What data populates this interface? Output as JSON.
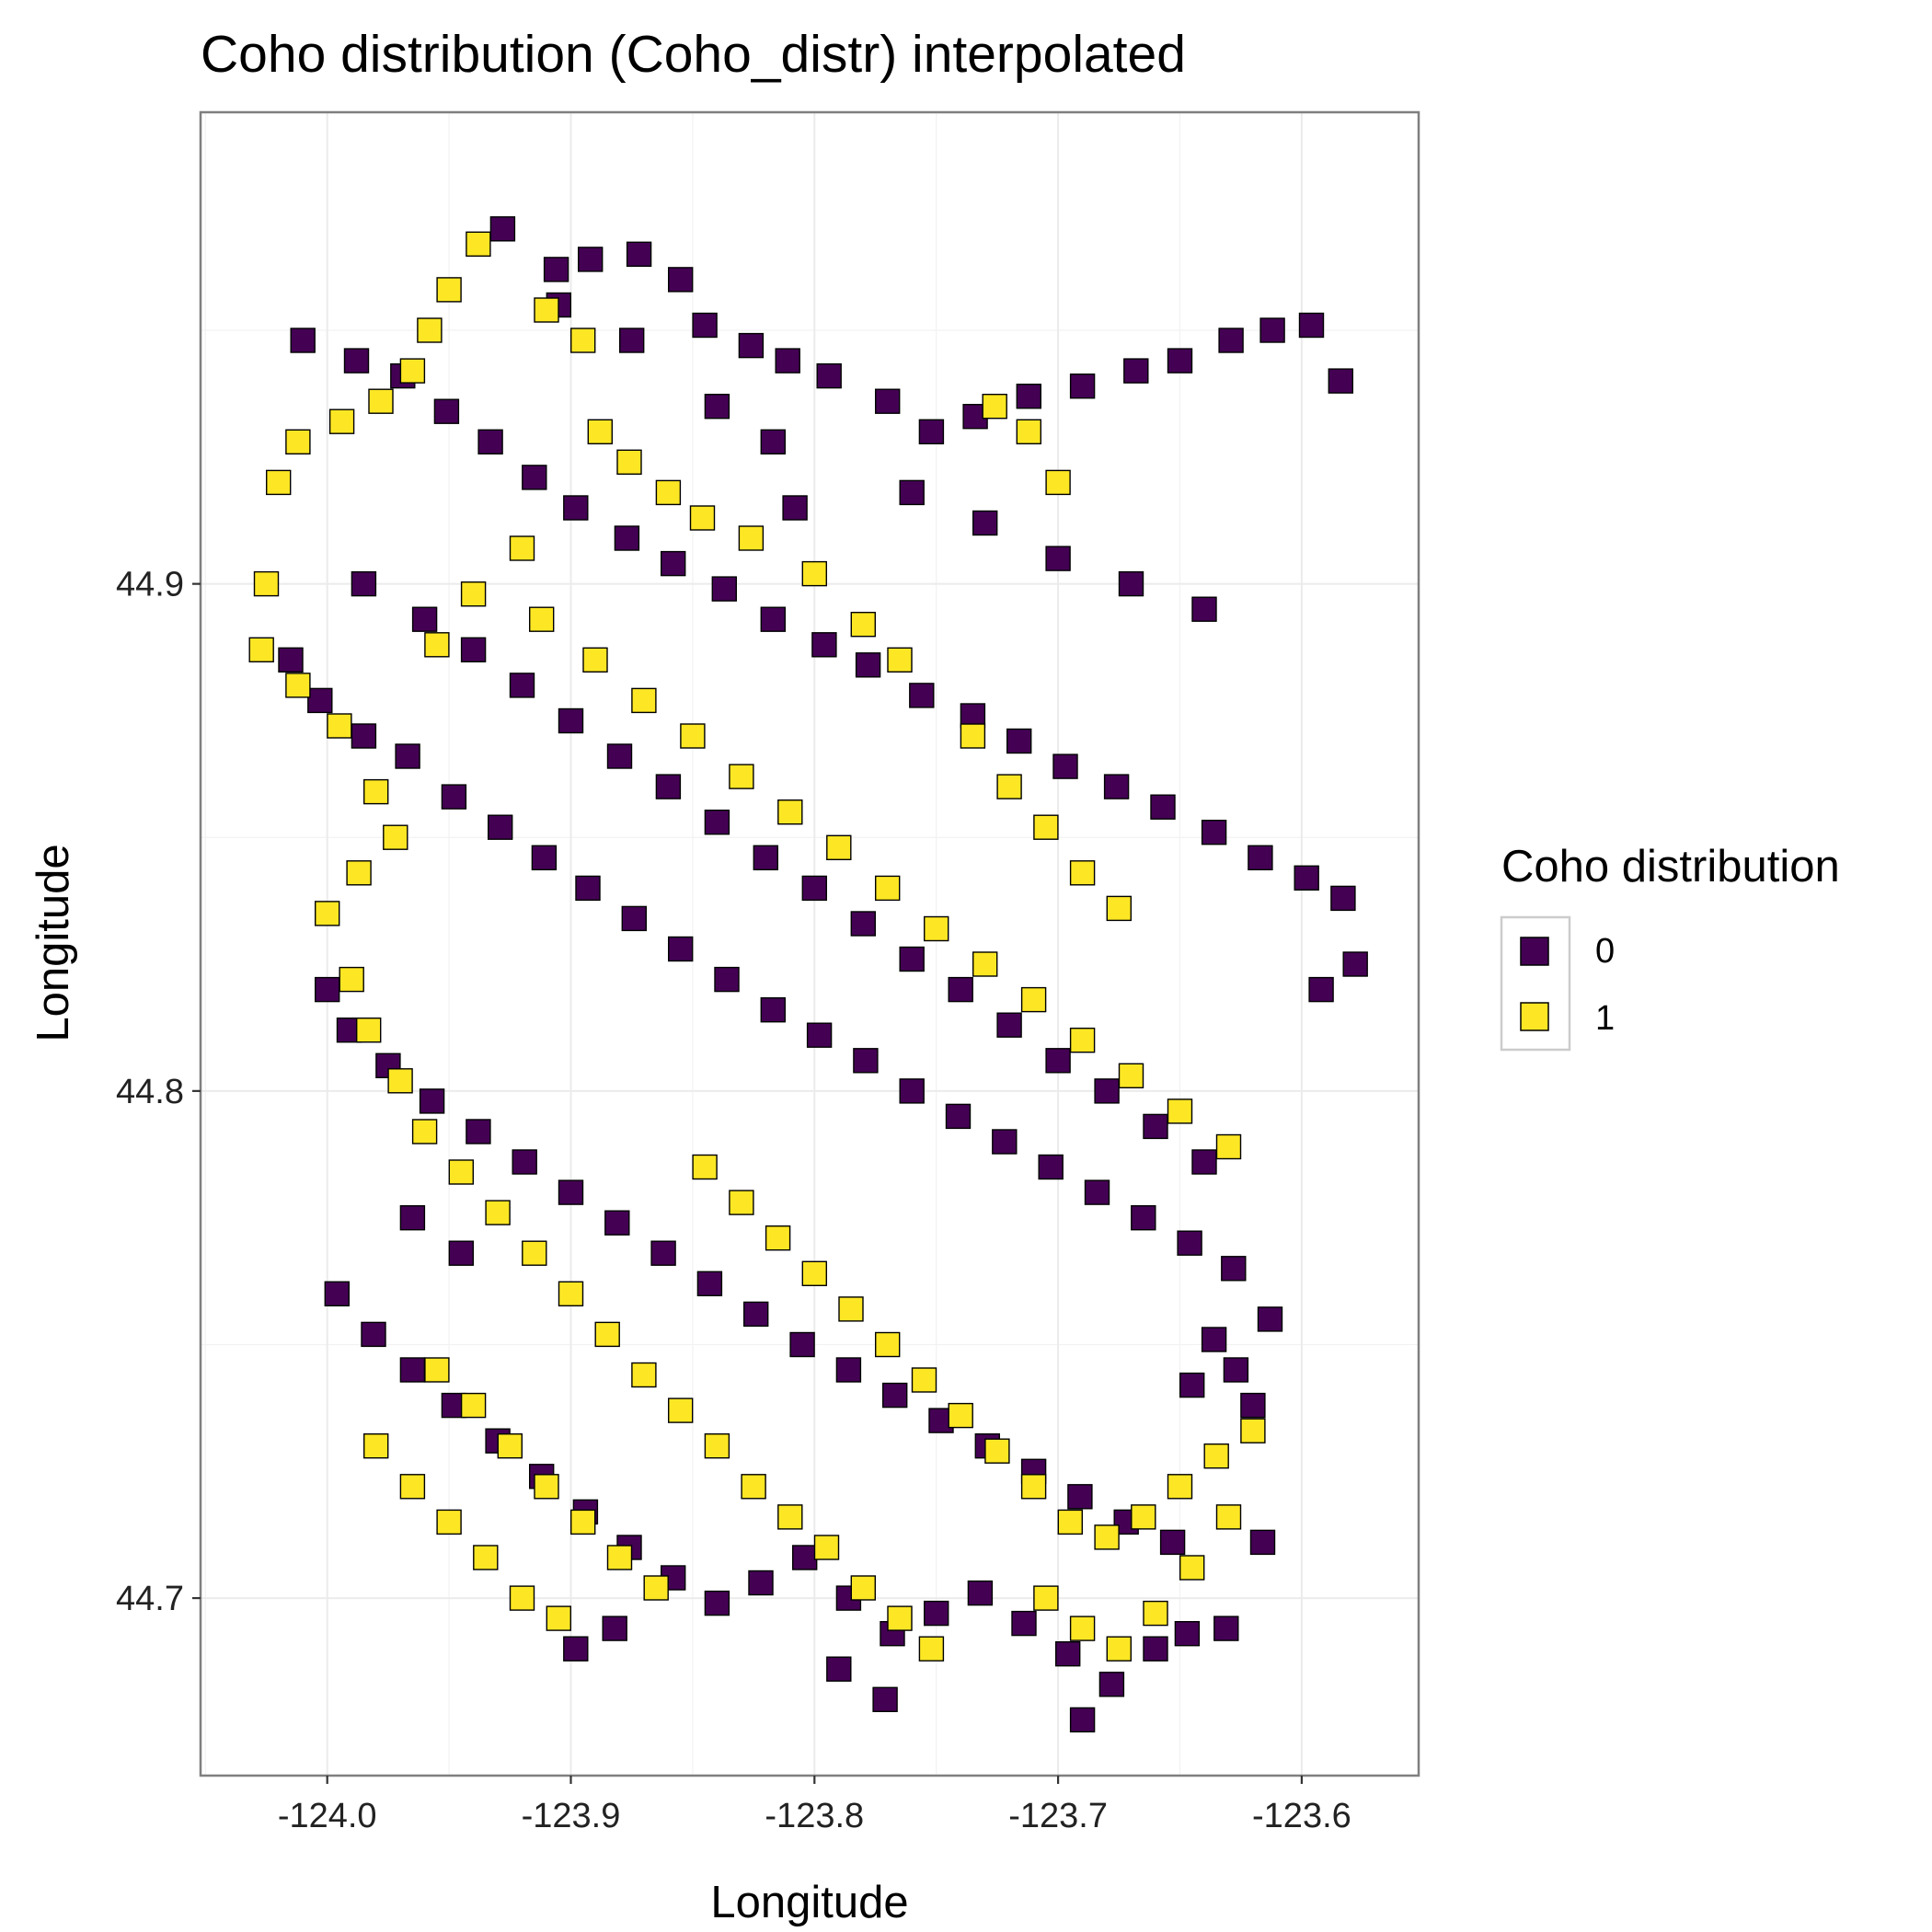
{
  "chart_data": {
    "type": "scatter",
    "title": "Coho distribution (Coho_distr) interpolated",
    "xlabel": "Longitude",
    "ylabel": "Longitude",
    "xlim": [
      -124.052,
      -123.552
    ],
    "ylim": [
      44.665,
      44.993
    ],
    "x_ticks": [
      "-124.0",
      "-123.9",
      "-123.8",
      "-123.7",
      "-123.6"
    ],
    "y_ticks": [
      "44.7",
      "44.8",
      "44.9"
    ],
    "grid": true,
    "legend": {
      "title": "Coho distribution",
      "position": "right",
      "entries": [
        {
          "label": "0",
          "color": "#440154"
        },
        {
          "label": "1",
          "color": "#FDE725"
        }
      ]
    },
    "marker": "square",
    "series": [
      {
        "name": "0",
        "color": "#440154",
        "points": [
          [
            -123.928,
            44.97
          ],
          [
            -123.906,
            44.962
          ],
          [
            -123.892,
            44.964
          ],
          [
            -123.872,
            44.965
          ],
          [
            -123.855,
            44.96
          ],
          [
            -123.845,
            44.951
          ],
          [
            -123.826,
            44.947
          ],
          [
            -123.811,
            44.944
          ],
          [
            -123.794,
            44.941
          ],
          [
            -123.77,
            44.936
          ],
          [
            -123.752,
            44.93
          ],
          [
            -123.734,
            44.933
          ],
          [
            -123.712,
            44.937
          ],
          [
            -123.69,
            44.939
          ],
          [
            -123.668,
            44.942
          ],
          [
            -123.65,
            44.944
          ],
          [
            -123.629,
            44.948
          ],
          [
            -123.612,
            44.95
          ],
          [
            -123.596,
            44.951
          ],
          [
            -123.584,
            44.94
          ],
          [
            -124.01,
            44.948
          ],
          [
            -123.988,
            44.944
          ],
          [
            -123.969,
            44.941
          ],
          [
            -123.951,
            44.934
          ],
          [
            -123.933,
            44.928
          ],
          [
            -123.915,
            44.921
          ],
          [
            -123.898,
            44.915
          ],
          [
            -123.877,
            44.909
          ],
          [
            -123.858,
            44.904
          ],
          [
            -123.837,
            44.899
          ],
          [
            -123.817,
            44.893
          ],
          [
            -123.796,
            44.888
          ],
          [
            -123.778,
            44.884
          ],
          [
            -123.756,
            44.878
          ],
          [
            -123.735,
            44.874
          ],
          [
            -123.716,
            44.869
          ],
          [
            -123.697,
            44.864
          ],
          [
            -123.676,
            44.86
          ],
          [
            -123.657,
            44.856
          ],
          [
            -123.636,
            44.851
          ],
          [
            -123.617,
            44.846
          ],
          [
            -123.598,
            44.842
          ],
          [
            -123.583,
            44.838
          ],
          [
            -123.578,
            44.825
          ],
          [
            -123.592,
            44.82
          ],
          [
            -124.015,
            44.885
          ],
          [
            -124.003,
            44.877
          ],
          [
            -123.985,
            44.87
          ],
          [
            -123.967,
            44.866
          ],
          [
            -123.948,
            44.858
          ],
          [
            -123.929,
            44.852
          ],
          [
            -123.911,
            44.846
          ],
          [
            -123.893,
            44.84
          ],
          [
            -123.874,
            44.834
          ],
          [
            -123.855,
            44.828
          ],
          [
            -123.836,
            44.822
          ],
          [
            -123.817,
            44.816
          ],
          [
            -123.798,
            44.811
          ],
          [
            -123.779,
            44.806
          ],
          [
            -123.76,
            44.8
          ],
          [
            -123.741,
            44.795
          ],
          [
            -123.722,
            44.79
          ],
          [
            -123.703,
            44.785
          ],
          [
            -123.684,
            44.78
          ],
          [
            -123.665,
            44.775
          ],
          [
            -123.646,
            44.77
          ],
          [
            -123.628,
            44.765
          ],
          [
            -123.613,
            44.755
          ],
          [
            -123.627,
            44.745
          ],
          [
            -123.645,
            44.742
          ],
          [
            -124.0,
            44.82
          ],
          [
            -123.991,
            44.812
          ],
          [
            -123.975,
            44.805
          ],
          [
            -123.957,
            44.798
          ],
          [
            -123.938,
            44.792
          ],
          [
            -123.919,
            44.786
          ],
          [
            -123.9,
            44.78
          ],
          [
            -123.881,
            44.774
          ],
          [
            -123.862,
            44.768
          ],
          [
            -123.843,
            44.762
          ],
          [
            -123.824,
            44.756
          ],
          [
            -123.805,
            44.75
          ],
          [
            -123.786,
            44.745
          ],
          [
            -123.767,
            44.74
          ],
          [
            -123.748,
            44.735
          ],
          [
            -123.729,
            44.73
          ],
          [
            -123.71,
            44.725
          ],
          [
            -123.691,
            44.72
          ],
          [
            -123.672,
            44.715
          ],
          [
            -123.653,
            44.711
          ],
          [
            -123.996,
            44.76
          ],
          [
            -123.981,
            44.752
          ],
          [
            -123.965,
            44.745
          ],
          [
            -123.948,
            44.738
          ],
          [
            -123.93,
            44.731
          ],
          [
            -123.912,
            44.724
          ],
          [
            -123.894,
            44.717
          ],
          [
            -123.876,
            44.71
          ],
          [
            -123.858,
            44.704
          ],
          [
            -123.84,
            44.699
          ],
          [
            -123.822,
            44.703
          ],
          [
            -123.804,
            44.708
          ],
          [
            -123.786,
            44.7
          ],
          [
            -123.768,
            44.693
          ],
          [
            -123.75,
            44.697
          ],
          [
            -123.732,
            44.701
          ],
          [
            -123.714,
            44.695
          ],
          [
            -123.696,
            44.689
          ],
          [
            -123.678,
            44.683
          ],
          [
            -123.66,
            44.69
          ],
          [
            -123.898,
            44.69
          ],
          [
            -123.882,
            44.694
          ],
          [
            -123.79,
            44.686
          ],
          [
            -123.771,
            44.68
          ],
          [
            -123.69,
            44.676
          ],
          [
            -123.647,
            44.693
          ],
          [
            -123.631,
            44.694
          ],
          [
            -123.616,
            44.711
          ],
          [
            -123.62,
            44.738
          ],
          [
            -123.636,
            44.751
          ],
          [
            -123.905,
            44.955
          ],
          [
            -123.875,
            44.948
          ],
          [
            -123.84,
            44.935
          ],
          [
            -123.817,
            44.928
          ],
          [
            -123.808,
            44.915
          ],
          [
            -123.76,
            44.918
          ],
          [
            -123.73,
            44.912
          ],
          [
            -123.7,
            44.905
          ],
          [
            -123.67,
            44.9
          ],
          [
            -123.64,
            44.895
          ],
          [
            -123.985,
            44.9
          ],
          [
            -123.96,
            44.893
          ],
          [
            -123.94,
            44.887
          ],
          [
            -123.92,
            44.88
          ],
          [
            -123.9,
            44.873
          ],
          [
            -123.88,
            44.866
          ],
          [
            -123.86,
            44.86
          ],
          [
            -123.84,
            44.853
          ],
          [
            -123.82,
            44.846
          ],
          [
            -123.8,
            44.84
          ],
          [
            -123.78,
            44.833
          ],
          [
            -123.76,
            44.826
          ],
          [
            -123.74,
            44.82
          ],
          [
            -123.72,
            44.813
          ],
          [
            -123.7,
            44.806
          ],
          [
            -123.68,
            44.8
          ],
          [
            -123.66,
            44.793
          ],
          [
            -123.64,
            44.786
          ],
          [
            -123.965,
            44.775
          ],
          [
            -123.945,
            44.768
          ]
        ]
      },
      {
        "name": "1",
        "color": "#FDE725",
        "points": [
          [
            -123.938,
            44.967
          ],
          [
            -123.95,
            44.958
          ],
          [
            -123.958,
            44.95
          ],
          [
            -123.965,
            44.942
          ],
          [
            -123.978,
            44.936
          ],
          [
            -123.994,
            44.932
          ],
          [
            -124.012,
            44.928
          ],
          [
            -124.02,
            44.92
          ],
          [
            -124.025,
            44.9
          ],
          [
            -124.027,
            44.887
          ],
          [
            -124.012,
            44.88
          ],
          [
            -123.995,
            44.872
          ],
          [
            -123.98,
            44.859
          ],
          [
            -123.972,
            44.85
          ],
          [
            -123.987,
            44.843
          ],
          [
            -124.0,
            44.835
          ],
          [
            -123.99,
            44.822
          ],
          [
            -123.983,
            44.812
          ],
          [
            -123.97,
            44.802
          ],
          [
            -123.96,
            44.792
          ],
          [
            -123.945,
            44.784
          ],
          [
            -123.93,
            44.776
          ],
          [
            -123.915,
            44.768
          ],
          [
            -123.9,
            44.76
          ],
          [
            -123.885,
            44.752
          ],
          [
            -123.87,
            44.744
          ],
          [
            -123.855,
            44.737
          ],
          [
            -123.84,
            44.73
          ],
          [
            -123.825,
            44.722
          ],
          [
            -123.81,
            44.716
          ],
          [
            -123.795,
            44.71
          ],
          [
            -123.78,
            44.702
          ],
          [
            -123.765,
            44.696
          ],
          [
            -123.752,
            44.69
          ],
          [
            -123.91,
            44.954
          ],
          [
            -123.895,
            44.948
          ],
          [
            -123.888,
            44.93
          ],
          [
            -123.876,
            44.924
          ],
          [
            -123.86,
            44.918
          ],
          [
            -123.846,
            44.913
          ],
          [
            -123.826,
            44.909
          ],
          [
            -123.8,
            44.902
          ],
          [
            -123.78,
            44.892
          ],
          [
            -123.765,
            44.885
          ],
          [
            -123.735,
            44.87
          ],
          [
            -123.72,
            44.86
          ],
          [
            -123.705,
            44.852
          ],
          [
            -123.69,
            44.843
          ],
          [
            -123.675,
            44.836
          ],
          [
            -123.7,
            44.92
          ],
          [
            -123.712,
            44.93
          ],
          [
            -123.726,
            44.935
          ],
          [
            -123.92,
            44.907
          ],
          [
            -123.94,
            44.898
          ],
          [
            -123.955,
            44.888
          ],
          [
            -123.912,
            44.893
          ],
          [
            -123.89,
            44.885
          ],
          [
            -123.87,
            44.877
          ],
          [
            -123.85,
            44.87
          ],
          [
            -123.83,
            44.862
          ],
          [
            -123.81,
            44.855
          ],
          [
            -123.79,
            44.848
          ],
          [
            -123.77,
            44.84
          ],
          [
            -123.75,
            44.832
          ],
          [
            -123.73,
            44.825
          ],
          [
            -123.71,
            44.818
          ],
          [
            -123.69,
            44.81
          ],
          [
            -123.67,
            44.803
          ],
          [
            -123.65,
            44.796
          ],
          [
            -123.63,
            44.789
          ],
          [
            -123.955,
            44.745
          ],
          [
            -123.94,
            44.738
          ],
          [
            -123.925,
            44.73
          ],
          [
            -123.91,
            44.722
          ],
          [
            -123.895,
            44.715
          ],
          [
            -123.88,
            44.708
          ],
          [
            -123.865,
            44.702
          ],
          [
            -123.705,
            44.7
          ],
          [
            -123.69,
            44.694
          ],
          [
            -123.675,
            44.69
          ],
          [
            -123.66,
            44.697
          ],
          [
            -123.645,
            44.706
          ],
          [
            -123.63,
            44.716
          ],
          [
            -123.98,
            44.73
          ],
          [
            -123.965,
            44.722
          ],
          [
            -123.95,
            44.715
          ],
          [
            -123.935,
            44.708
          ],
          [
            -123.92,
            44.7
          ],
          [
            -123.905,
            44.696
          ],
          [
            -123.845,
            44.785
          ],
          [
            -123.83,
            44.778
          ],
          [
            -123.815,
            44.771
          ],
          [
            -123.8,
            44.764
          ],
          [
            -123.785,
            44.757
          ],
          [
            -123.77,
            44.75
          ],
          [
            -123.755,
            44.743
          ],
          [
            -123.74,
            44.736
          ],
          [
            -123.725,
            44.729
          ],
          [
            -123.71,
            44.722
          ],
          [
            -123.695,
            44.715
          ],
          [
            -123.68,
            44.712
          ],
          [
            -123.665,
            44.716
          ],
          [
            -123.65,
            44.722
          ],
          [
            -123.635,
            44.728
          ],
          [
            -123.62,
            44.733
          ]
        ]
      }
    ]
  }
}
